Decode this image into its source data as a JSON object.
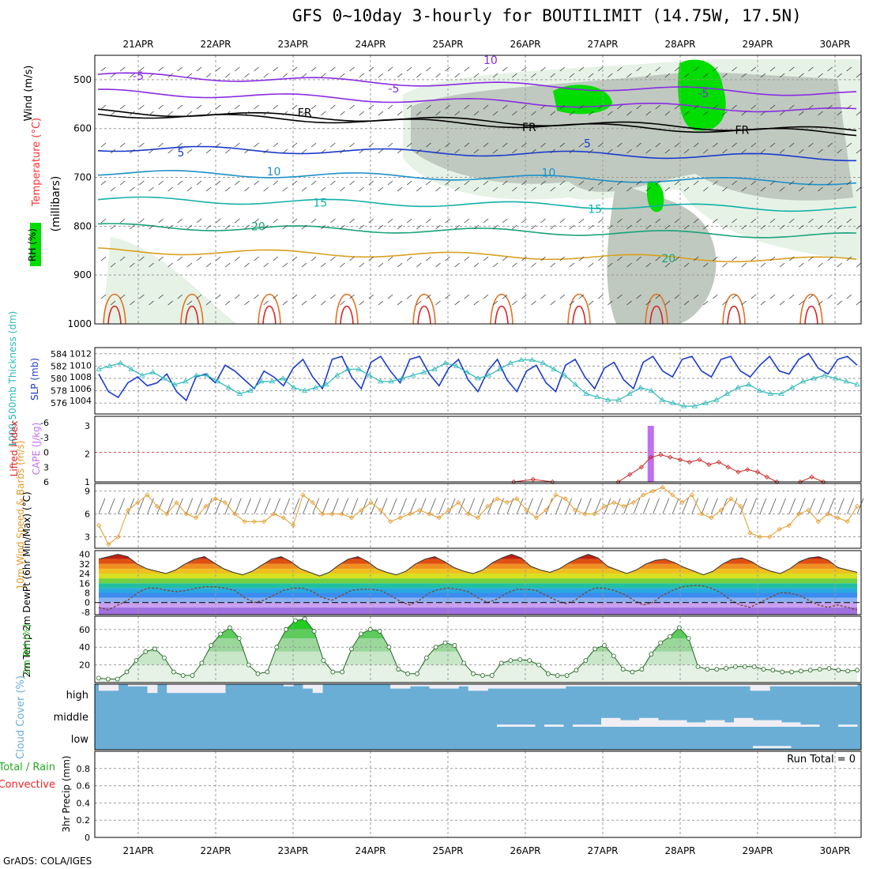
{
  "title": "GFS 0~10day 3-hourly for BOUTILIMIT (14.75W, 17.5N)",
  "credit": "GrADS: COLA/IGES",
  "dates": [
    "21APR",
    "22APR",
    "23APR",
    "24APR",
    "25APR",
    "26APR",
    "27APR",
    "28APR",
    "29APR",
    "30APR"
  ],
  "colors": {
    "frame": "#000000",
    "grid": "#9a9a9a",
    "rh_light": "#e6f2e6",
    "rh_mid": "#bfc9bf",
    "rh_dark": "#8a958a",
    "rh_green": "#00dd00",
    "slp": "#1a3bcc",
    "thickness": "#2ab8b8",
    "cape": "#c070f0",
    "lifted": "#cc2222",
    "wind10": "#e39a2a",
    "rh2m": "#22aa22",
    "cloud": "#6aaed6",
    "cloud_gap": "#f0eef4"
  },
  "chart_data": [
    {
      "type": "line",
      "panel": "upper-air",
      "ylabel_parts": [
        "Wind (m/s)",
        "Temperature (°C)",
        "RH (%)",
        "(millibars)"
      ],
      "yticks": [
        500,
        600,
        700,
        800,
        900,
        1000
      ],
      "ylim": [
        450,
        1000
      ],
      "contour_labels": [
        {
          "text": "-5",
          "day": 0.0,
          "p": 492
        },
        {
          "text": "10",
          "day": 4.55,
          "p": 460
        },
        {
          "text": "-5",
          "day": 3.3,
          "p": 518
        },
        {
          "text": "-5",
          "day": 7.3,
          "p": 528
        },
        {
          "text": "FR",
          "day": 2.15,
          "p": 567
        },
        {
          "text": "FR",
          "day": 5.05,
          "p": 597
        },
        {
          "text": "FR",
          "day": 7.8,
          "p": 603
        },
        {
          "text": "5",
          "day": 0.55,
          "p": 649
        },
        {
          "text": "5",
          "day": 5.8,
          "p": 630
        },
        {
          "text": "10",
          "day": 1.75,
          "p": 688
        },
        {
          "text": "10",
          "day": 5.3,
          "p": 690
        },
        {
          "text": "15",
          "day": 2.35,
          "p": 752
        },
        {
          "text": "15",
          "day": 5.9,
          "p": 765
        },
        {
          "text": "20",
          "day": 1.55,
          "p": 800
        },
        {
          "text": "20",
          "day": 6.85,
          "p": 866
        }
      ]
    },
    {
      "type": "line",
      "panel": "slp-thickness",
      "ylabel_left": "1000-500mb Thickness (dm)",
      "ylabel_right": "SLP (mb)",
      "yticks_left": [
        576,
        578,
        580,
        582,
        584
      ],
      "yticks_right": [
        1004,
        1006,
        1008,
        1010,
        1012
      ],
      "series": [
        {
          "name": "SLP (mb)",
          "values": [
            1008.5,
            1005.5,
            1004.5,
            1007.0,
            1008.0,
            1006.5,
            1007.0,
            1008.5,
            1005.5,
            1004.0,
            1008.0,
            1008.5,
            1007.0,
            1010.0,
            1009.0,
            1007.5,
            1006.0,
            1009.0,
            1008.0,
            1006.5,
            1009.5,
            1011.0,
            1008.0,
            1006.0,
            1011.0,
            1011.5,
            1008.0,
            1006.0,
            1010.5,
            1011.5,
            1009.0,
            1007.0,
            1011.0,
            1011.5,
            1008.5,
            1006.5,
            1009.5,
            1011.0,
            1007.5,
            1005.5,
            1009.0,
            1011.0,
            1007.5,
            1005.5,
            1009.0,
            1010.0,
            1007.0,
            1005.5,
            1010.0,
            1011.0,
            1008.0,
            1006.0,
            1009.5,
            1010.5,
            1007.5,
            1006.0,
            1010.5,
            1011.5,
            1009.0,
            1008.0,
            1011.0,
            1011.5,
            1009.0,
            1008.0,
            1011.0,
            1011.5,
            1009.0,
            1008.0,
            1010.0,
            1011.5,
            1009.0,
            1008.5,
            1011.0,
            1012.0,
            1009.5,
            1008.5,
            1011.0,
            1011.5,
            1010.0
          ]
        },
        {
          "name": "1000-500mb Thickness (dm)",
          "values": [
            581.5,
            582.0,
            582.5,
            581.5,
            580.5,
            581.0,
            580.0,
            579.0,
            579.5,
            580.5,
            580.5,
            579.5,
            578.5,
            577.5,
            578.0,
            579.5,
            579.5,
            580.0,
            578.5,
            578.0,
            578.5,
            579.0,
            580.5,
            581.5,
            581.5,
            580.5,
            579.5,
            579.5,
            580.0,
            580.5,
            581.0,
            581.5,
            582.5,
            582.0,
            581.0,
            580.0,
            580.5,
            581.5,
            582.5,
            583.0,
            583.0,
            582.5,
            581.5,
            580.5,
            579.0,
            577.5,
            577.0,
            576.5,
            576.5,
            577.5,
            578.5,
            578.0,
            576.5,
            576.0,
            575.5,
            575.5,
            576.0,
            576.5,
            577.5,
            578.5,
            579.0,
            578.0,
            577.5,
            577.5,
            578.5,
            579.5,
            580.0,
            580.5,
            580.0,
            579.5,
            579.0
          ]
        }
      ]
    },
    {
      "type": "bar",
      "panel": "instability",
      "ylabel_left": "Lifted Index",
      "ylabel_right": "CAPE (J/kg)",
      "yticks_left": [
        "-6",
        "-3",
        "0",
        "3",
        "6"
      ],
      "yticks_right": [
        "3",
        "2",
        "1"
      ],
      "cape_bars": [
        {
          "day": 6.62,
          "value": 3
        }
      ],
      "lifted_index": [
        {
          "day": 4.85,
          "value": 6.0
        },
        {
          "day": 5.1,
          "value": 5.5
        },
        {
          "day": 5.35,
          "value": 6.0
        },
        {
          "day": 6.2,
          "value": 6.0
        },
        {
          "day": 6.35,
          "value": 4.5
        },
        {
          "day": 6.5,
          "value": 3.0
        },
        {
          "day": 6.62,
          "value": 1.0
        },
        {
          "day": 6.75,
          "value": 0.5
        },
        {
          "day": 6.87,
          "value": 1.0
        },
        {
          "day": 7.0,
          "value": 1.5
        },
        {
          "day": 7.12,
          "value": 2.0
        },
        {
          "day": 7.25,
          "value": 1.5
        },
        {
          "day": 7.37,
          "value": 2.5
        },
        {
          "day": 7.5,
          "value": 2.0
        },
        {
          "day": 7.62,
          "value": 3.0
        },
        {
          "day": 7.75,
          "value": 4.0
        },
        {
          "day": 7.87,
          "value": 3.5
        },
        {
          "day": 8.0,
          "value": 4.0
        },
        {
          "day": 8.12,
          "value": 5.0
        },
        {
          "day": 8.25,
          "value": 6.0
        },
        {
          "day": 8.55,
          "value": 6.0
        },
        {
          "day": 8.7,
          "value": 5.0
        },
        {
          "day": 8.85,
          "value": 6.0
        }
      ]
    },
    {
      "type": "line",
      "panel": "10m-wind",
      "ylabel": "10m Wind Speed & Barbs (m/s)",
      "yticks": [
        3,
        6,
        9
      ],
      "ylim": [
        1.5,
        10
      ],
      "series": [
        {
          "name": "10m Wind Speed",
          "values": [
            4.5,
            2.0,
            3.0,
            6.5,
            7.5,
            8.5,
            7.0,
            6.0,
            7.5,
            6.0,
            5.5,
            7.0,
            8.0,
            7.5,
            6.0,
            5.0,
            5.0,
            5.0,
            6.0,
            5.5,
            4.5,
            8.5,
            7.5,
            6.0,
            6.0,
            6.0,
            5.5,
            6.5,
            7.5,
            6.5,
            5.0,
            5.5,
            6.0,
            6.5,
            6.0,
            5.5,
            6.5,
            7.5,
            6.0,
            5.5,
            7.0,
            8.0,
            7.5,
            8.0,
            6.5,
            5.5,
            6.5,
            8.5,
            8.0,
            6.5,
            6.0,
            6.0,
            7.0,
            7.5,
            7.0,
            7.5,
            8.5,
            9.0,
            9.5,
            8.5,
            7.5,
            8.5,
            6.0,
            5.5,
            6.5,
            8.0,
            7.0,
            3.5,
            3.0,
            3.0,
            4.0,
            4.5,
            6.0,
            6.5,
            5.0,
            6.0,
            5.5,
            5.0,
            7.0
          ]
        }
      ]
    },
    {
      "type": "area",
      "panel": "2m-temp",
      "ylabel": "2m Temp 2m DewPt (6hr Min/Max) (°C)",
      "yticks": [
        40,
        32,
        24,
        16,
        8,
        0,
        -8
      ],
      "ylim": [
        -10,
        43
      ],
      "series": [
        {
          "name": "2m Temp",
          "values": [
            36,
            38,
            40,
            38,
            32,
            28,
            26,
            24,
            27,
            32,
            36,
            38,
            33,
            28,
            25,
            23,
            26,
            31,
            36,
            38,
            34,
            28,
            25,
            22,
            25,
            31,
            36,
            38,
            34,
            28,
            25,
            23,
            26,
            32,
            36,
            38,
            34,
            29,
            26,
            24,
            27,
            33,
            37,
            40,
            37,
            30,
            27,
            25,
            28,
            33,
            37,
            40,
            37,
            30,
            27,
            24,
            27,
            32,
            35,
            36,
            33,
            29,
            26,
            23,
            26,
            32,
            36,
            37,
            34,
            29,
            26,
            24,
            28,
            34,
            37,
            38,
            35,
            29,
            27,
            25
          ]
        },
        {
          "name": "2m DewPt",
          "values": [
            -4,
            -6,
            -2,
            2,
            8,
            12,
            12,
            10,
            9,
            10,
            12,
            13,
            13,
            12,
            10,
            4,
            0,
            2,
            6,
            10,
            12,
            12,
            9,
            4,
            2,
            6,
            10,
            11,
            11,
            10,
            6,
            1,
            -2,
            2,
            8,
            11,
            12,
            11,
            9,
            4,
            0,
            3,
            8,
            11,
            11,
            10,
            6,
            2,
            -1,
            2,
            8,
            12,
            12,
            10,
            7,
            2,
            -2,
            0,
            6,
            10,
            13,
            14,
            14,
            12,
            8,
            2,
            -2,
            -4,
            0,
            4,
            8,
            8,
            6,
            2,
            -2,
            -4,
            -2,
            -4,
            -6
          ]
        }
      ]
    },
    {
      "type": "area",
      "panel": "2m-rh",
      "ylabel": "2m RH (%)",
      "yticks": [
        20,
        40,
        60
      ],
      "ylim": [
        0,
        75
      ],
      "series": [
        {
          "name": "2m RH",
          "values": [
            5,
            4,
            4,
            12,
            25,
            35,
            38,
            28,
            12,
            8,
            8,
            22,
            42,
            55,
            62,
            50,
            20,
            10,
            12,
            40,
            60,
            70,
            72,
            58,
            25,
            12,
            12,
            38,
            55,
            60,
            58,
            40,
            15,
            10,
            10,
            28,
            40,
            45,
            42,
            22,
            10,
            8,
            8,
            22,
            25,
            26,
            25,
            20,
            10,
            8,
            8,
            14,
            25,
            38,
            42,
            30,
            15,
            12,
            15,
            32,
            45,
            52,
            62,
            50,
            18,
            15,
            15,
            16,
            18,
            18,
            18,
            15,
            14,
            12,
            12,
            13,
            14,
            15,
            16,
            14,
            13,
            14
          ]
        }
      ]
    },
    {
      "type": "heatmap",
      "panel": "cloud-cover",
      "ylabel": "Cloud Cover (%)",
      "ytick_labels": [
        "high",
        "middle",
        "low"
      ],
      "layers": [
        {
          "name": "high",
          "values": [
            70,
            70,
            100,
            90,
            90,
            60,
            100,
            60,
            60,
            60,
            60,
            60,
            60,
            100,
            100,
            100,
            100,
            100,
            100,
            90,
            100,
            80,
            60,
            100,
            100,
            100,
            100,
            100,
            100,
            100,
            80,
            80,
            90,
            90,
            80,
            80,
            80,
            90,
            70,
            70,
            80,
            80,
            80,
            80,
            80,
            80,
            80,
            80,
            90,
            90,
            90,
            90,
            90,
            90,
            90,
            90,
            90,
            90,
            90,
            90,
            90,
            90,
            90,
            90,
            90,
            90,
            90,
            70,
            70,
            90,
            90,
            90,
            90,
            90,
            90,
            90,
            90,
            90
          ]
        },
        {
          "name": "middle",
          "values": [
            0,
            0,
            0,
            0,
            0,
            0,
            0,
            0,
            0,
            0,
            0,
            0,
            0,
            0,
            0,
            0,
            0,
            0,
            0,
            0,
            0,
            0,
            0,
            0,
            0,
            0,
            0,
            0,
            0,
            0,
            0,
            0,
            0,
            0,
            0,
            0,
            0,
            0,
            0,
            0,
            0,
            0,
            10,
            10,
            10,
            10,
            0,
            10,
            10,
            0,
            10,
            10,
            10,
            40,
            40,
            30,
            30,
            40,
            40,
            30,
            30,
            30,
            20,
            20,
            30,
            30,
            20,
            40,
            40,
            30,
            30,
            30,
            20,
            20,
            10,
            10,
            0,
            0,
            10,
            10
          ]
        },
        {
          "name": "low",
          "values": [
            0,
            0,
            0,
            0,
            0,
            0,
            0,
            0,
            0,
            0,
            0,
            0,
            0,
            0,
            0,
            0,
            0,
            0,
            0,
            0,
            0,
            0,
            0,
            0,
            0,
            0,
            0,
            0,
            0,
            0,
            0,
            0,
            0,
            0,
            0,
            0,
            0,
            0,
            0,
            0,
            0,
            0,
            0,
            0,
            0,
            0,
            0,
            0,
            0,
            0,
            0,
            0,
            0,
            0,
            0,
            0,
            0,
            0,
            0,
            0,
            0,
            0,
            0,
            0,
            0,
            0,
            0,
            0,
            0,
            10,
            10,
            10,
            10,
            0,
            0,
            0,
            0,
            0,
            0,
            0
          ]
        }
      ]
    },
    {
      "type": "bar",
      "panel": "precip",
      "ylabel_left": "Total / Rain",
      "ylabel_left2": "Convective",
      "ylabel": "3hr Precip (mm)",
      "yticks": [
        0,
        0.2,
        0.4,
        0.6,
        0.8
      ],
      "ylim": [
        0,
        1
      ],
      "annotation": "Run Total = 0",
      "values": []
    }
  ]
}
